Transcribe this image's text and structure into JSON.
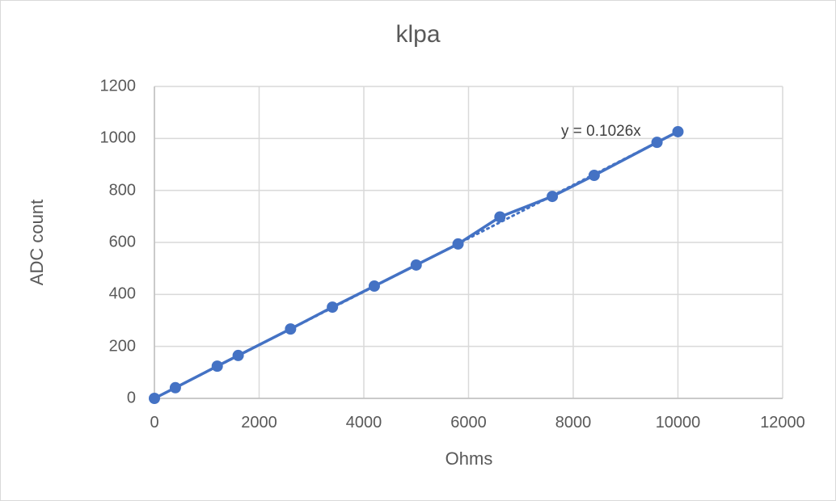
{
  "chart_data": {
    "type": "scatter",
    "title": "klpa",
    "xlabel": "Ohms",
    "ylabel": "ADC count",
    "xlim": [
      0,
      12000
    ],
    "ylim": [
      0,
      1200
    ],
    "x_ticks": [
      "0",
      "2000",
      "4000",
      "6000",
      "8000",
      "10000",
      "12000"
    ],
    "y_ticks": [
      "0",
      "200",
      "400",
      "600",
      "800",
      "1000",
      "1200"
    ],
    "grid": true,
    "legend": null,
    "series": [
      {
        "name": "ADC count",
        "style": "line+markers",
        "color": "#4472C4",
        "x": [
          0,
          400,
          1200,
          1600,
          2600,
          3400,
          4200,
          5000,
          5800,
          6600,
          7600,
          8400,
          9600,
          10000
        ],
        "y": [
          0,
          41,
          124,
          165,
          267,
          351,
          432,
          513,
          594,
          698,
          777,
          858,
          985,
          1026
        ]
      }
    ],
    "trendline": {
      "type": "linear",
      "intercept": 0,
      "slope": 0.1026,
      "style": "dotted",
      "color": "#4472C4",
      "equation_label": "y = 0.1026x"
    }
  }
}
